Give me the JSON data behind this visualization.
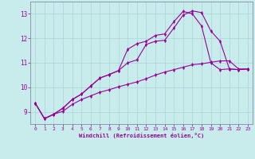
{
  "xlabel": "Windchill (Refroidissement éolien,°C)",
  "background_color": "#c8ecec",
  "grid_color": "#b0d8d8",
  "line_color": "#990099",
  "spine_color": "#8888aa",
  "xlim": [
    -0.5,
    23.5
  ],
  "ylim": [
    8.5,
    13.5
  ],
  "yticks": [
    9,
    10,
    11,
    12,
    13
  ],
  "xticks": [
    0,
    1,
    2,
    3,
    4,
    5,
    6,
    7,
    8,
    9,
    10,
    11,
    12,
    13,
    14,
    15,
    16,
    17,
    18,
    19,
    20,
    21,
    22,
    23
  ],
  "lines": [
    {
      "x": [
        0,
        1,
        2,
        3,
        4,
        5,
        6,
        7,
        8,
        9,
        10,
        11,
        12,
        13,
        14,
        15,
        16,
        17,
        18,
        19,
        20,
        21,
        22,
        23
      ],
      "y": [
        9.35,
        8.72,
        8.9,
        9.15,
        9.5,
        9.72,
        10.05,
        10.38,
        10.52,
        10.68,
        11.0,
        11.12,
        11.75,
        11.88,
        11.92,
        12.42,
        12.95,
        13.12,
        13.05,
        12.3,
        11.88,
        10.75,
        10.72,
        10.75
      ]
    },
    {
      "x": [
        0,
        1,
        2,
        3,
        4,
        5,
        6,
        7,
        8,
        9,
        10,
        11,
        12,
        13,
        14,
        15,
        16,
        17,
        18,
        19,
        20,
        21,
        22,
        23
      ],
      "y": [
        9.35,
        8.72,
        8.9,
        9.15,
        9.5,
        9.72,
        10.05,
        10.38,
        10.52,
        10.68,
        11.55,
        11.78,
        11.88,
        12.12,
        12.18,
        12.68,
        13.1,
        13.0,
        12.5,
        11.0,
        10.72,
        10.75,
        10.72,
        10.75
      ]
    },
    {
      "x": [
        0,
        1,
        2,
        3,
        4,
        5,
        6,
        7,
        8,
        9,
        10,
        11,
        12,
        13,
        14,
        15,
        16,
        17,
        18,
        19,
        20,
        21,
        22,
        23
      ],
      "y": [
        9.35,
        8.72,
        8.9,
        9.02,
        9.3,
        9.5,
        9.65,
        9.8,
        9.9,
        10.02,
        10.12,
        10.22,
        10.35,
        10.5,
        10.62,
        10.72,
        10.82,
        10.92,
        10.96,
        11.02,
        11.08,
        11.08,
        10.75,
        10.75
      ]
    }
  ]
}
